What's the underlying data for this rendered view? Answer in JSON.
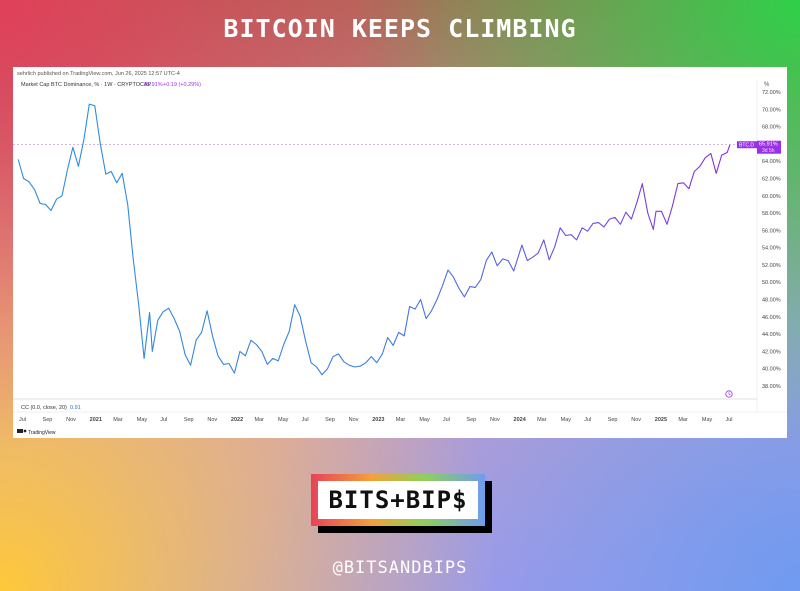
{
  "header": {
    "title": "BITCOIN KEEPS CLIMBING"
  },
  "panel": {
    "publish_note": "sehrlich published on TradingView.com, Jun 26, 2025 12:57 UTC-4",
    "legend_series": "Market Cap BTC Dominance, % · 1W · CRYPTOCAP",
    "legend_value": "65.91%",
    "legend_change": "+0.19 (+0.29%)",
    "unit": "%",
    "price_tag": "BTC.D",
    "price_tag_value": "65.91%",
    "price_tag_countdown": "3d 5h",
    "indicator_label": "CC (0.0, close, 20)",
    "indicator_value": "0.91",
    "brand": "TradingView"
  },
  "logo": {
    "text": "BITS+BIP$"
  },
  "footer": {
    "handle": "@BITSANDBIPS"
  },
  "colors": {
    "line_start": "#2a8fdd",
    "line_end": "#8a2be2",
    "accent": "#9a30e8"
  },
  "chart_data": {
    "type": "line",
    "title": "",
    "ylabel": "%",
    "ylim": [
      36.5,
      73.5
    ],
    "yticks": [
      38,
      40,
      42,
      44,
      46,
      48,
      50,
      52,
      54,
      56,
      58,
      60,
      62,
      64,
      66,
      68,
      70,
      72
    ],
    "yticklabels": [
      "38.00%",
      "40.00%",
      "42.00%",
      "44.00%",
      "46.00%",
      "48.00%",
      "50.00%",
      "52.00%",
      "54.00%",
      "56.00%",
      "58.00%",
      "60.00%",
      "62.00%",
      "64.00%",
      "66.00%",
      "68.00%",
      "70.00%",
      "72.00%"
    ],
    "xticklabels": [
      "Jul",
      "Sep",
      "Nov",
      "2021",
      "Mar",
      "May",
      "Jul",
      "Sep",
      "Nov",
      "2022",
      "Mar",
      "May",
      "Jul",
      "Sep",
      "Nov",
      "2023",
      "Mar",
      "May",
      "Jul",
      "Sep",
      "Nov",
      "2024",
      "Mar",
      "May",
      "Jul",
      "Sep",
      "Nov",
      "2025",
      "Mar",
      "May",
      "Jul"
    ],
    "series": [
      {
        "values": [
          [
            "2020-06-28",
            64.2
          ],
          [
            "2020-07-12",
            62.0
          ],
          [
            "2020-07-26",
            61.6
          ],
          [
            "2020-08-09",
            60.7
          ],
          [
            "2020-08-23",
            59.1
          ],
          [
            "2020-09-06",
            59.0
          ],
          [
            "2020-09-20",
            58.3
          ],
          [
            "2020-10-04",
            59.6
          ],
          [
            "2020-10-18",
            60.0
          ],
          [
            "2020-11-01",
            63.0
          ],
          [
            "2020-11-15",
            65.6
          ],
          [
            "2020-11-29",
            63.4
          ],
          [
            "2020-12-13",
            66.5
          ],
          [
            "2020-12-27",
            70.6
          ],
          [
            "2021-01-10",
            70.4
          ],
          [
            "2021-01-24",
            66.0
          ],
          [
            "2021-02-07",
            62.5
          ],
          [
            "2021-02-21",
            62.8
          ],
          [
            "2021-03-07",
            61.5
          ],
          [
            "2021-03-21",
            62.6
          ],
          [
            "2021-04-04",
            59.0
          ],
          [
            "2021-04-18",
            52.8
          ],
          [
            "2021-05-02",
            47.5
          ],
          [
            "2021-05-16",
            41.2
          ],
          [
            "2021-05-30",
            46.5
          ],
          [
            "2021-06-06",
            42.0
          ],
          [
            "2021-06-20",
            45.6
          ],
          [
            "2021-07-04",
            46.6
          ],
          [
            "2021-07-18",
            47.0
          ],
          [
            "2021-08-01",
            45.8
          ],
          [
            "2021-08-15",
            44.3
          ],
          [
            "2021-08-29",
            41.6
          ],
          [
            "2021-09-12",
            40.4
          ],
          [
            "2021-09-26",
            43.3
          ],
          [
            "2021-10-10",
            44.2
          ],
          [
            "2021-10-24",
            46.7
          ],
          [
            "2021-11-07",
            43.8
          ],
          [
            "2021-11-21",
            41.5
          ],
          [
            "2021-12-05",
            40.5
          ],
          [
            "2021-12-19",
            40.6
          ],
          [
            "2022-01-02",
            39.5
          ],
          [
            "2022-01-16",
            42.0
          ],
          [
            "2022-01-30",
            41.5
          ],
          [
            "2022-02-13",
            43.3
          ],
          [
            "2022-02-27",
            42.8
          ],
          [
            "2022-03-13",
            42.0
          ],
          [
            "2022-03-27",
            40.5
          ],
          [
            "2022-04-10",
            41.2
          ],
          [
            "2022-04-24",
            40.9
          ],
          [
            "2022-05-08",
            42.8
          ],
          [
            "2022-05-22",
            44.3
          ],
          [
            "2022-06-05",
            47.4
          ],
          [
            "2022-06-19",
            46.1
          ],
          [
            "2022-07-03",
            43.2
          ],
          [
            "2022-07-17",
            40.7
          ],
          [
            "2022-07-31",
            40.2
          ],
          [
            "2022-08-14",
            39.3
          ],
          [
            "2022-08-28",
            40.0
          ],
          [
            "2022-09-11",
            41.4
          ],
          [
            "2022-09-25",
            41.7
          ],
          [
            "2022-10-09",
            40.8
          ],
          [
            "2022-10-23",
            40.4
          ],
          [
            "2022-11-06",
            40.2
          ],
          [
            "2022-11-20",
            40.3
          ],
          [
            "2022-12-04",
            40.7
          ],
          [
            "2022-12-18",
            41.4
          ],
          [
            "2023-01-01",
            40.7
          ],
          [
            "2023-01-15",
            41.7
          ],
          [
            "2023-01-29",
            43.6
          ],
          [
            "2023-02-12",
            42.7
          ],
          [
            "2023-02-26",
            44.2
          ],
          [
            "2023-03-12",
            43.8
          ],
          [
            "2023-03-26",
            47.2
          ],
          [
            "2023-04-09",
            46.9
          ],
          [
            "2023-04-23",
            48.0
          ],
          [
            "2023-05-07",
            45.8
          ],
          [
            "2023-05-21",
            46.7
          ],
          [
            "2023-06-04",
            48.0
          ],
          [
            "2023-06-18",
            49.6
          ],
          [
            "2023-07-02",
            51.4
          ],
          [
            "2023-07-16",
            50.6
          ],
          [
            "2023-07-30",
            49.3
          ],
          [
            "2023-08-13",
            48.3
          ],
          [
            "2023-08-27",
            49.5
          ],
          [
            "2023-09-10",
            49.4
          ],
          [
            "2023-09-24",
            50.3
          ],
          [
            "2023-10-08",
            52.5
          ],
          [
            "2023-10-22",
            53.5
          ],
          [
            "2023-11-05",
            51.9
          ],
          [
            "2023-11-19",
            52.7
          ],
          [
            "2023-12-03",
            52.5
          ],
          [
            "2023-12-17",
            51.3
          ],
          [
            "2024-01-07",
            54.3
          ],
          [
            "2024-01-21",
            52.5
          ],
          [
            "2024-02-04",
            52.9
          ],
          [
            "2024-02-18",
            53.4
          ],
          [
            "2024-03-03",
            54.9
          ],
          [
            "2024-03-17",
            52.6
          ],
          [
            "2024-03-31",
            54.1
          ],
          [
            "2024-04-14",
            56.3
          ],
          [
            "2024-04-28",
            55.4
          ],
          [
            "2024-05-12",
            55.5
          ],
          [
            "2024-05-26",
            54.9
          ],
          [
            "2024-06-09",
            56.3
          ],
          [
            "2024-06-23",
            55.9
          ],
          [
            "2024-07-07",
            56.8
          ],
          [
            "2024-07-21",
            56.9
          ],
          [
            "2024-08-04",
            56.4
          ],
          [
            "2024-08-18",
            57.3
          ],
          [
            "2024-09-01",
            57.5
          ],
          [
            "2024-09-15",
            56.7
          ],
          [
            "2024-09-29",
            58.1
          ],
          [
            "2024-10-13",
            57.3
          ],
          [
            "2024-10-27",
            59.2
          ],
          [
            "2024-11-10",
            61.4
          ],
          [
            "2024-11-24",
            58.0
          ],
          [
            "2024-12-08",
            56.1
          ],
          [
            "2024-12-15",
            58.2
          ],
          [
            "2024-12-29",
            58.2
          ],
          [
            "2025-01-12",
            56.7
          ],
          [
            "2025-01-26",
            58.8
          ],
          [
            "2025-02-09",
            61.4
          ],
          [
            "2025-02-23",
            61.5
          ],
          [
            "2025-03-09",
            60.8
          ],
          [
            "2025-03-23",
            62.8
          ],
          [
            "2025-04-06",
            63.4
          ],
          [
            "2025-04-20",
            64.4
          ],
          [
            "2025-05-04",
            64.9
          ],
          [
            "2025-05-18",
            62.6
          ],
          [
            "2025-06-01",
            64.7
          ],
          [
            "2025-06-15",
            65.0
          ],
          [
            "2025-06-22",
            65.9
          ]
        ]
      }
    ]
  }
}
